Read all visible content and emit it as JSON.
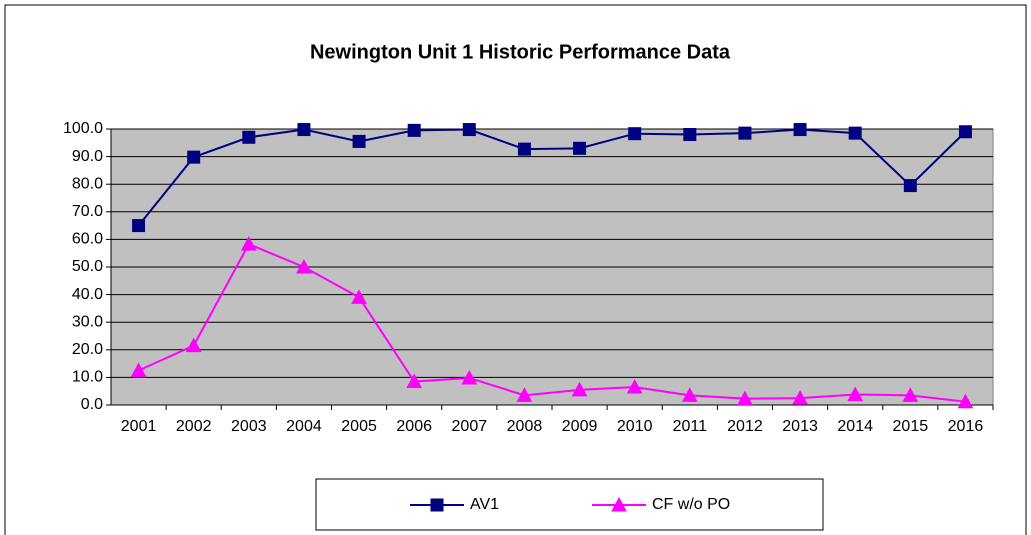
{
  "chart_data": {
    "type": "line",
    "title": "Newington Unit 1 Historic Performance Data",
    "categories": [
      "2001",
      "2002",
      "2003",
      "2004",
      "2005",
      "2006",
      "2007",
      "2008",
      "2009",
      "2010",
      "2011",
      "2012",
      "2013",
      "2014",
      "2015",
      "2016"
    ],
    "series": [
      {
        "name": "AV1",
        "color": "#000080",
        "marker": "square",
        "values": [
          65.0,
          89.8,
          97.0,
          99.8,
          95.5,
          99.5,
          99.8,
          92.7,
          93.0,
          98.3,
          98.0,
          98.5,
          99.8,
          98.5,
          79.5,
          99.0
        ]
      },
      {
        "name": "CF w/o PO",
        "color": "#ff00ff",
        "marker": "triangle",
        "values": [
          12.5,
          21.5,
          58.3,
          50.0,
          39.0,
          8.5,
          9.8,
          3.5,
          5.5,
          6.5,
          3.5,
          2.3,
          2.5,
          3.8,
          3.5,
          1.2
        ]
      }
    ],
    "ylim": [
      0,
      100
    ],
    "yticks": [
      {
        "value": 0,
        "label": "0.0"
      },
      {
        "value": 10,
        "label": "10.0"
      },
      {
        "value": 20,
        "label": "20.0"
      },
      {
        "value": 30,
        "label": "30.0"
      },
      {
        "value": 40,
        "label": "40.0"
      },
      {
        "value": 50,
        "label": "50.0"
      },
      {
        "value": 60,
        "label": "60.0"
      },
      {
        "value": 70,
        "label": "70.0"
      },
      {
        "value": 80,
        "label": "80.0"
      },
      {
        "value": 90,
        "label": "90.0"
      },
      {
        "value": 100,
        "label": "100.0"
      }
    ],
    "grid": true,
    "plot_background": "#c0c0c0",
    "legend": "bottom"
  }
}
